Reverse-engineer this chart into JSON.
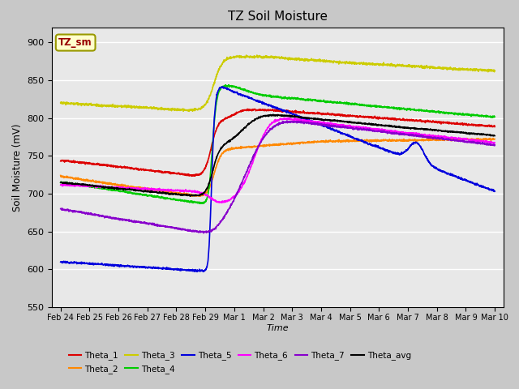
{
  "title": "TZ Soil Moisture",
  "xlabel": "Time",
  "ylabel": "Soil Moisture (mV)",
  "ylim": [
    550,
    920
  ],
  "yticks": [
    550,
    600,
    650,
    700,
    750,
    800,
    850,
    900
  ],
  "legend_label": "TZ_sm",
  "series_colors": {
    "Theta_1": "#dd0000",
    "Theta_2": "#ff8800",
    "Theta_3": "#cccc00",
    "Theta_4": "#00cc00",
    "Theta_5": "#0000dd",
    "Theta_6": "#ff00ff",
    "Theta_7": "#8800cc",
    "Theta_avg": "#000000"
  },
  "tick_labels": [
    "Feb 24",
    "Feb 25",
    "Feb 26",
    "Feb 27",
    "Feb 28",
    "Feb 29",
    "Mar 1",
    "Mar 2",
    "Mar 3",
    "Mar 4",
    "Mar 5",
    "Mar 6",
    "Mar 7",
    "Mar 8",
    "Mar 9",
    "Mar 10"
  ]
}
